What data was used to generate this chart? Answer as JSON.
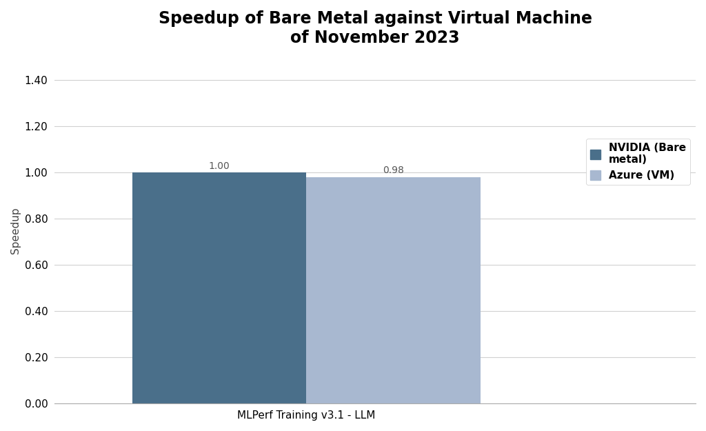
{
  "title_line1": "Speedup of Bare Metal against Virtual Machine",
  "title_line2": "of November 2023",
  "categories": [
    "MLPerf Training v3.1 - LLM"
  ],
  "series": [
    {
      "label": "NVIDIA (Bare\nmetal)",
      "value": 1.0,
      "color": "#4a6f8a"
    },
    {
      "label": "Azure (VM)",
      "value": 0.98,
      "color": "#a8b8d0"
    }
  ],
  "ylabel": "Speedup",
  "ylim": [
    0.0,
    1.5
  ],
  "yticks": [
    0.0,
    0.2,
    0.4,
    0.6,
    0.8,
    1.0,
    1.2,
    1.4
  ],
  "bar_width": 0.38,
  "bar_gap": 0.0,
  "background_color": "#ffffff",
  "title_fontsize": 17,
  "axis_label_fontsize": 11,
  "tick_fontsize": 11,
  "legend_fontsize": 11,
  "value_label_fontsize": 10
}
